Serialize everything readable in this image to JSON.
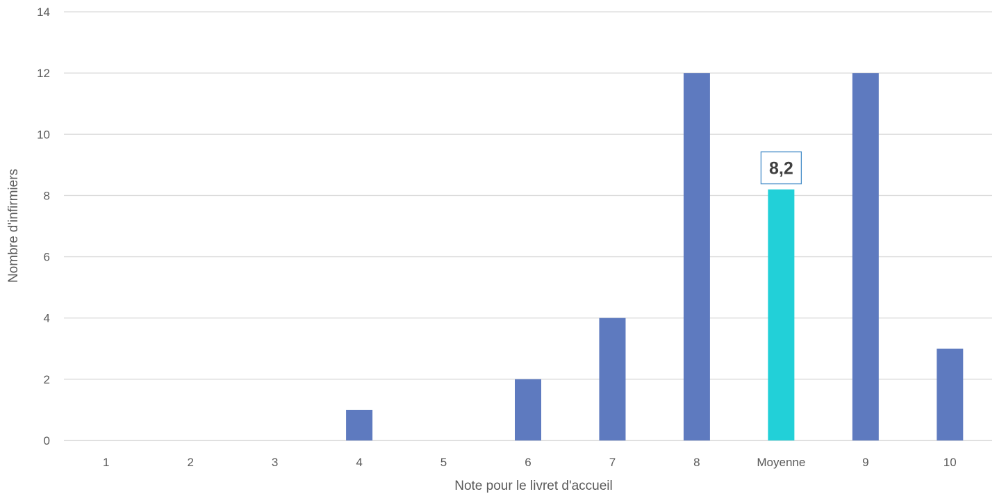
{
  "chart_data": {
    "type": "bar",
    "title": "",
    "xlabel": "Note pour le livret d'accueil",
    "ylabel": "Nombre d'infirmiers",
    "categories": [
      "1",
      "2",
      "3",
      "4",
      "5",
      "6",
      "7",
      "8",
      "Moyenne",
      "9",
      "10"
    ],
    "values": [
      0,
      0,
      0,
      1,
      0,
      2,
      4,
      12,
      8.2,
      12,
      3
    ],
    "highlight_category": "Moyenne",
    "highlight_label": "8,2",
    "ylim": [
      0,
      14
    ],
    "yticks": [
      0,
      2,
      4,
      6,
      8,
      10,
      12,
      14
    ],
    "ytick_labels": [
      "0",
      "2",
      "4",
      "6",
      "8",
      "10",
      "12",
      "14"
    ],
    "grid": true,
    "legend": "none",
    "colors": {
      "bar": "#5e7abf",
      "highlight_bar": "#22d0d8",
      "grid": "#d9d9d9",
      "label_border": "#4a8fc9"
    }
  }
}
